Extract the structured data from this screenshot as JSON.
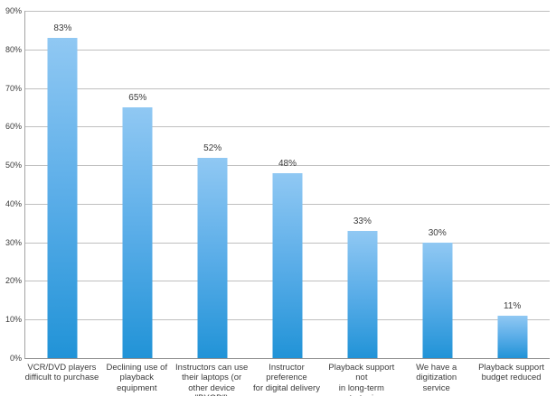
{
  "chart_data": {
    "type": "bar",
    "title": "",
    "xlabel": "",
    "ylabel": "",
    "categories": [
      "VCR/DVD players difficult to purchase",
      "Declining use of playback equipment",
      "Instructors can use their laptops (or other device \"BYOD\")",
      "Instructor preference for digital delivery",
      "Playback support not in long-term strategic plan",
      "We have a digitization service",
      "Playback support budget reduced"
    ],
    "category_lines": [
      "VCR/DVD players\ndifficult to purchase",
      "Declining use of\nplayback equipment",
      "Instructors can use\ntheir laptops (or\nother device \"BYOD\")",
      "Instructor preference\nfor digital delivery",
      "Playback support not\nin long-term strategic\nplan",
      "We have a digitization\nservice",
      "Playback support\nbudget reduced"
    ],
    "values": [
      83,
      65,
      52,
      48,
      33,
      30,
      11
    ],
    "value_labels": [
      "83%",
      "65%",
      "52%",
      "48%",
      "33%",
      "30%",
      "11%"
    ],
    "yticks": [
      "0%",
      "10%",
      "20%",
      "30%",
      "40%",
      "50%",
      "60%",
      "70%",
      "80%",
      "90%"
    ],
    "ylim": [
      0,
      90
    ],
    "grid": true,
    "legend": "none",
    "colors": {
      "bar_gradient_top": "#90c8f3",
      "bar_gradient_mid": "#5aade8",
      "bar_gradient_bottom": "#2193d7",
      "gridline": "#bfbfbf",
      "axis_line": "#8f8f8f",
      "text": "#3b3b3b",
      "background": "#ffffff"
    }
  }
}
